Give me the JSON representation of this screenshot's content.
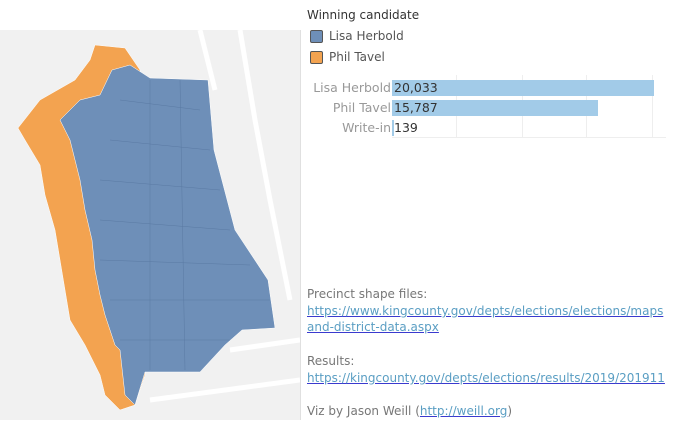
{
  "legend": {
    "title": "Winning candidate",
    "items": [
      {
        "label": "Lisa Herbold",
        "color": "#6e8fb8"
      },
      {
        "label": "Phil Tavel",
        "color": "#f3a350"
      }
    ]
  },
  "chart_data": {
    "type": "bar",
    "categories": [
      "Lisa Herbold",
      "Phil Tavel",
      "Write-in"
    ],
    "values": [
      20033,
      15787,
      139
    ],
    "labels": [
      "20,033",
      "15,787",
      "139"
    ],
    "xlim": [
      0,
      20500
    ]
  },
  "notes": {
    "precinct_label": "Precinct shape files:",
    "precinct_link1": "https://www.kingcounty.gov/depts/elections/elections/maps",
    "precinct_link2": "and-district-data.aspx",
    "results_label": "Results:",
    "results_link": "https://kingcounty.gov/depts/elections/results/2019/201911",
    "credit_prefix": "Viz by Jason Weill (",
    "credit_link": "http://weill.org",
    "credit_suffix": ")"
  }
}
